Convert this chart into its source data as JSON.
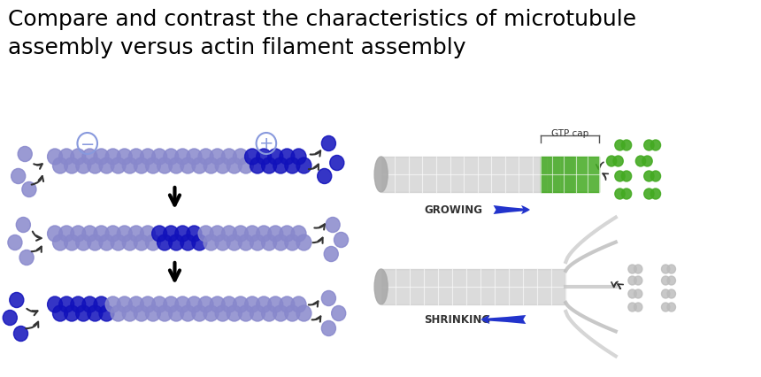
{
  "title_line1": "Compare and contrast the characteristics of microtubule",
  "title_line2": "assembly versus actin filament assembly",
  "title_fontsize": 18,
  "title_color": "#000000",
  "bg_color": "#ffffff",
  "light_blue": "#8888cc",
  "dark_blue": "#1111bb",
  "circle_blue": "#8899dd",
  "green": "#44aa22",
  "gray_tube": "#cccccc",
  "gray_light": "#bbbbbb",
  "arrow_blue": "#2233cc",
  "minus_circle_color": "#8899dd",
  "plus_circle_color": "#8899dd",
  "growing_label": "GROWING",
  "shrinking_label": "SHRINKING",
  "gtp_cap_label": "GTP cap"
}
